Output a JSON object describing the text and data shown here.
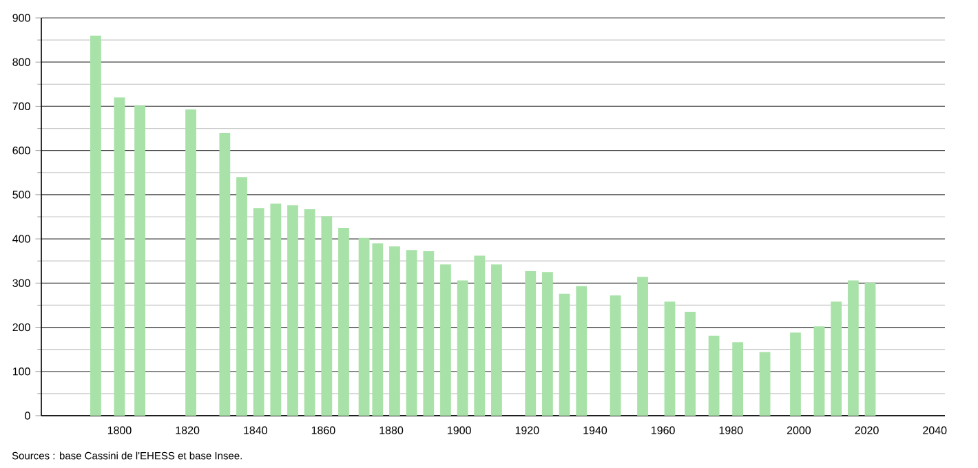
{
  "chart_data": {
    "type": "bar",
    "color": "#a8e2a8",
    "x": [
      1793,
      1800,
      1806,
      1821,
      1831,
      1836,
      1841,
      1846,
      1851,
      1856,
      1861,
      1866,
      1872,
      1876,
      1881,
      1886,
      1891,
      1896,
      1901,
      1906,
      1911,
      1921,
      1926,
      1931,
      1936,
      1946,
      1954,
      1962,
      1968,
      1975,
      1982,
      1990,
      1999,
      2006,
      2011,
      2016,
      2021
    ],
    "values": [
      860,
      720,
      702,
      693,
      640,
      540,
      470,
      480,
      476,
      467,
      451,
      425,
      402,
      390,
      383,
      375,
      372,
      342,
      306,
      362,
      342,
      327,
      325,
      276,
      293,
      272,
      314,
      258,
      235,
      181,
      166,
      144,
      188,
      202,
      258,
      306,
      301
    ],
    "xlim": [
      1777,
      2043
    ],
    "xticks": [
      1800,
      1820,
      1840,
      1860,
      1880,
      1900,
      1920,
      1940,
      1960,
      1980,
      2000,
      2020,
      2040
    ],
    "ylim": [
      0,
      900
    ],
    "yticks": [
      0,
      100,
      200,
      300,
      400,
      500,
      600,
      700,
      800,
      900
    ],
    "grid": "y",
    "annotations": [
      "Sources : base Cassini de l'EHESS et base Insee."
    ]
  }
}
